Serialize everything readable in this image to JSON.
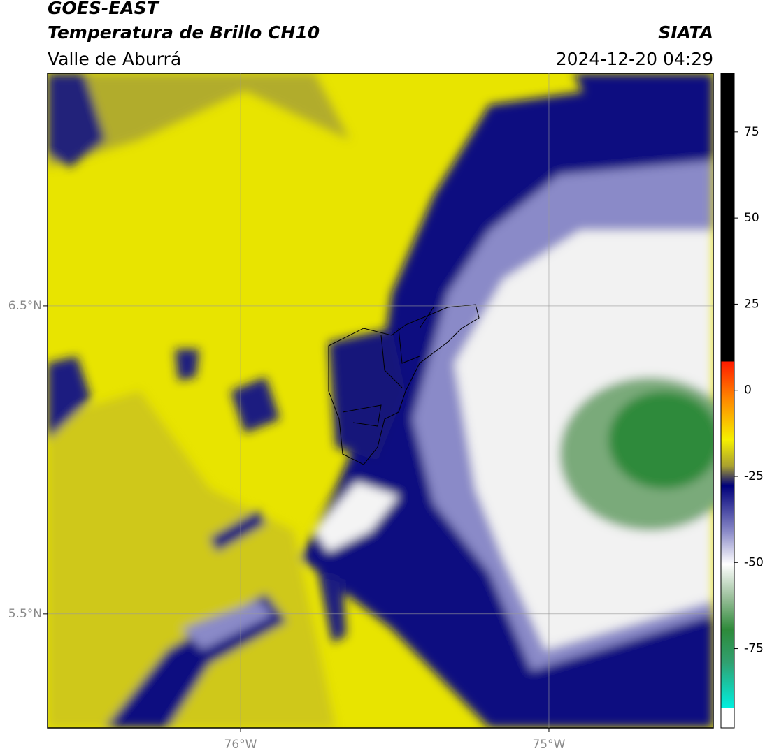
{
  "header": {
    "title": "GOES-EAST",
    "subtitle": "Temperatura de Brillo CH10",
    "region": "Valle de Aburrá",
    "source": "SIATA",
    "timestamp": "2024-12-20 04:29"
  },
  "map": {
    "xlim": [
      -76.626,
      -74.467
    ],
    "ylim": [
      5.13,
      7.255
    ],
    "xticks": [
      {
        "value": -76,
        "label": "76°W"
      },
      {
        "value": -75,
        "label": "75°W"
      }
    ],
    "yticks": [
      {
        "value": 6.5,
        "label": "6.5°N"
      },
      {
        "value": 5.5,
        "label": "5.5°N"
      }
    ],
    "grid": true
  },
  "colorbar": {
    "lim": [
      -98,
      92
    ],
    "ticks": [
      75,
      50,
      25,
      0,
      -25,
      -50,
      -75
    ]
  }
}
